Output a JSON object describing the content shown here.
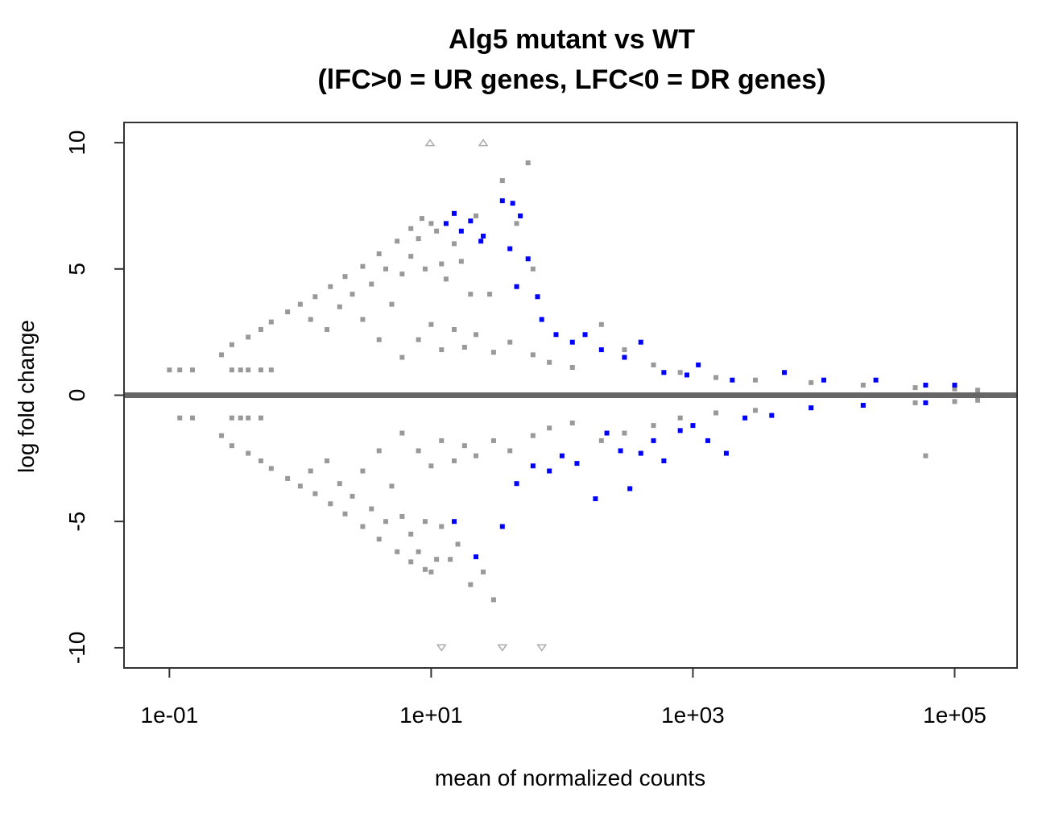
{
  "chart_data": {
    "type": "scatter",
    "title": "Alg5 mutant vs WT",
    "subtitle": "(lFC>0 = UR genes, LFC<0 = DR genes)",
    "xlabel": "mean of normalized counts",
    "ylabel": "log fold change",
    "x_scale": "log10",
    "xlim": [
      0.045,
      300000
    ],
    "ylim": [
      -10.8,
      10.8
    ],
    "x_ticks": [
      0.1,
      10,
      1000,
      100000
    ],
    "x_tick_labels": [
      "1e-01",
      "1e+01",
      "1e+03",
      "1e+05"
    ],
    "y_ticks": [
      -10,
      -5,
      0,
      5,
      10
    ],
    "y_tick_labels": [
      "-10",
      "-5",
      "0",
      "5",
      "10"
    ],
    "grid": false,
    "legend": "none",
    "colors": {
      "not_significant": "#999999",
      "significant": "#0000ff",
      "zero_line": "#666666",
      "out_of_range": "#aaaaaa"
    },
    "series": [
      {
        "values_desc": "not significant",
        "color": "#999999",
        "points": [
          [
            0.1,
            1.0
          ],
          [
            0.12,
            1.0
          ],
          [
            0.15,
            1.0
          ],
          [
            0.12,
            -0.9
          ],
          [
            0.15,
            -0.9
          ],
          [
            0.25,
            1.6
          ],
          [
            0.25,
            -1.6
          ],
          [
            0.3,
            1.0
          ],
          [
            0.35,
            1.0
          ],
          [
            0.4,
            1.0
          ],
          [
            0.5,
            1.0
          ],
          [
            0.6,
            1.0
          ],
          [
            0.3,
            -0.9
          ],
          [
            0.35,
            -0.9
          ],
          [
            0.4,
            -0.9
          ],
          [
            0.5,
            -0.9
          ],
          [
            0.3,
            2.0
          ],
          [
            0.4,
            2.3
          ],
          [
            0.5,
            2.6
          ],
          [
            0.6,
            2.9
          ],
          [
            0.8,
            3.3
          ],
          [
            1.0,
            3.6
          ],
          [
            1.3,
            3.9
          ],
          [
            1.7,
            4.3
          ],
          [
            2.2,
            4.7
          ],
          [
            3.0,
            5.1
          ],
          [
            4.0,
            5.6
          ],
          [
            5.5,
            6.1
          ],
          [
            7.0,
            6.6
          ],
          [
            8.5,
            7.0
          ],
          [
            0.3,
            -2.0
          ],
          [
            0.4,
            -2.3
          ],
          [
            0.5,
            -2.6
          ],
          [
            0.6,
            -2.9
          ],
          [
            0.8,
            -3.3
          ],
          [
            1.0,
            -3.6
          ],
          [
            1.3,
            -3.9
          ],
          [
            1.7,
            -4.3
          ],
          [
            2.2,
            -4.7
          ],
          [
            3.0,
            -5.2
          ],
          [
            4.0,
            -5.7
          ],
          [
            5.5,
            -6.2
          ],
          [
            7.0,
            -6.6
          ],
          [
            9.0,
            -6.9
          ],
          [
            1.2,
            3.0
          ],
          [
            1.6,
            2.6
          ],
          [
            2.0,
            3.5
          ],
          [
            2.5,
            4.0
          ],
          [
            3.0,
            3.0
          ],
          [
            3.5,
            4.4
          ],
          [
            4.0,
            2.2
          ],
          [
            4.5,
            5.0
          ],
          [
            5.0,
            3.6
          ],
          [
            6.0,
            4.8
          ],
          [
            7.0,
            5.5
          ],
          [
            8.0,
            6.2
          ],
          [
            9.0,
            5.0
          ],
          [
            10.0,
            6.8
          ],
          [
            11.0,
            6.5
          ],
          [
            12.0,
            5.2
          ],
          [
            13.0,
            4.6
          ],
          [
            15.0,
            6.0
          ],
          [
            17.0,
            5.3
          ],
          [
            20.0,
            4.0
          ],
          [
            22.0,
            7.1
          ],
          [
            28.0,
            4.0
          ],
          [
            35.0,
            8.5
          ],
          [
            45.0,
            6.8
          ],
          [
            55.0,
            9.2
          ],
          [
            60.0,
            5.0
          ],
          [
            1.2,
            -3.0
          ],
          [
            1.6,
            -2.6
          ],
          [
            2.0,
            -3.5
          ],
          [
            2.5,
            -4.0
          ],
          [
            3.0,
            -3.0
          ],
          [
            3.5,
            -4.5
          ],
          [
            4.0,
            -2.2
          ],
          [
            4.5,
            -5.0
          ],
          [
            5.0,
            -3.6
          ],
          [
            6.0,
            -4.8
          ],
          [
            7.0,
            -5.5
          ],
          [
            8.0,
            -6.2
          ],
          [
            9.0,
            -5.0
          ],
          [
            10.0,
            -7.0
          ],
          [
            11.0,
            -6.5
          ],
          [
            12.0,
            -5.2
          ],
          [
            14.0,
            -6.5
          ],
          [
            16.0,
            -5.9
          ],
          [
            20.0,
            -7.5
          ],
          [
            25.0,
            -7.0
          ],
          [
            30.0,
            -8.1
          ],
          [
            6.0,
            1.5
          ],
          [
            8.0,
            2.2
          ],
          [
            10.0,
            2.8
          ],
          [
            12.0,
            1.8
          ],
          [
            15.0,
            2.6
          ],
          [
            18.0,
            1.9
          ],
          [
            22.0,
            2.4
          ],
          [
            30.0,
            1.7
          ],
          [
            40.0,
            2.1
          ],
          [
            60.0,
            1.6
          ],
          [
            80.0,
            1.3
          ],
          [
            120.0,
            1.1
          ],
          [
            6.0,
            -1.5
          ],
          [
            8.0,
            -2.2
          ],
          [
            10.0,
            -2.8
          ],
          [
            12.0,
            -1.8
          ],
          [
            15.0,
            -2.6
          ],
          [
            18.0,
            -2.0
          ],
          [
            22.0,
            -2.4
          ],
          [
            30.0,
            -1.8
          ],
          [
            40.0,
            -2.2
          ],
          [
            60.0,
            -1.6
          ],
          [
            80.0,
            -1.3
          ],
          [
            120.0,
            -1.1
          ],
          [
            200.0,
            2.8
          ],
          [
            300.0,
            1.8
          ],
          [
            500.0,
            1.2
          ],
          [
            800.0,
            0.9
          ],
          [
            1500.0,
            0.7
          ],
          [
            3000.0,
            0.6
          ],
          [
            8000.0,
            0.5
          ],
          [
            20000.0,
            0.4
          ],
          [
            50000.0,
            0.3
          ],
          [
            100000.0,
            0.25
          ],
          [
            150000.0,
            0.2
          ],
          [
            200.0,
            -1.8
          ],
          [
            300.0,
            -1.5
          ],
          [
            500.0,
            -1.2
          ],
          [
            800.0,
            -0.9
          ],
          [
            1500.0,
            -0.7
          ],
          [
            3000.0,
            -0.6
          ],
          [
            8000.0,
            -0.5
          ],
          [
            20000.0,
            -0.4
          ],
          [
            50000.0,
            -0.3
          ],
          [
            60000.0,
            -2.4
          ],
          [
            100000.0,
            -0.25
          ],
          [
            150000.0,
            -0.2
          ]
        ]
      },
      {
        "values_desc": "significant",
        "color": "#0000ff",
        "points": [
          [
            13.0,
            6.8
          ],
          [
            15.0,
            7.2
          ],
          [
            17.0,
            6.5
          ],
          [
            20.0,
            6.9
          ],
          [
            25.0,
            6.3
          ],
          [
            35.0,
            7.7
          ],
          [
            42.0,
            7.6
          ],
          [
            48.0,
            7.1
          ],
          [
            24.0,
            6.1
          ],
          [
            40.0,
            5.8
          ],
          [
            55.0,
            5.4
          ],
          [
            45.0,
            4.3
          ],
          [
            65.0,
            3.9
          ],
          [
            70.0,
            3.0
          ],
          [
            90.0,
            2.4
          ],
          [
            120.0,
            2.1
          ],
          [
            150.0,
            2.4
          ],
          [
            200.0,
            1.8
          ],
          [
            300.0,
            1.5
          ],
          [
            400.0,
            2.1
          ],
          [
            600.0,
            0.9
          ],
          [
            900.0,
            0.8
          ],
          [
            1100.0,
            1.2
          ],
          [
            2000.0,
            0.6
          ],
          [
            5000.0,
            0.9
          ],
          [
            10000.0,
            0.6
          ],
          [
            25000.0,
            0.6
          ],
          [
            60000.0,
            0.4
          ],
          [
            100000.0,
            0.4
          ],
          [
            15.0,
            -5.0
          ],
          [
            22.0,
            -6.4
          ],
          [
            35.0,
            -5.2
          ],
          [
            45.0,
            -3.5
          ],
          [
            60.0,
            -2.8
          ],
          [
            80.0,
            -3.0
          ],
          [
            100.0,
            -2.4
          ],
          [
            130.0,
            -2.7
          ],
          [
            180.0,
            -4.1
          ],
          [
            220.0,
            -1.5
          ],
          [
            280.0,
            -2.2
          ],
          [
            330.0,
            -3.7
          ],
          [
            400.0,
            -2.3
          ],
          [
            500.0,
            -1.8
          ],
          [
            600.0,
            -2.6
          ],
          [
            800.0,
            -1.4
          ],
          [
            1000.0,
            -1.2
          ],
          [
            1300.0,
            -1.8
          ],
          [
            1800.0,
            -2.3
          ],
          [
            2500.0,
            -0.9
          ],
          [
            4000.0,
            -0.8
          ],
          [
            8000.0,
            -0.5
          ],
          [
            20000.0,
            -0.4
          ],
          [
            60000.0,
            -0.3
          ]
        ]
      }
    ],
    "out_of_range": {
      "above": [
        [
          9.8,
          10
        ],
        [
          25.0,
          10
        ]
      ],
      "below": [
        [
          12.0,
          -10
        ],
        [
          35.0,
          -10
        ],
        [
          70.0,
          -10
        ]
      ]
    }
  }
}
